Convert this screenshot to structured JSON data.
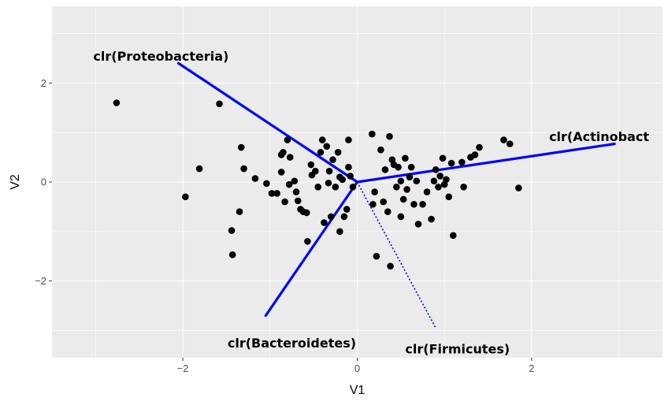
{
  "chart_data": {
    "type": "scatter",
    "title": "",
    "xlabel": "V1",
    "ylabel": "V2",
    "xlim": [
      -3.5,
      3.5
    ],
    "ylim": [
      -3.55,
      3.55
    ],
    "x_ticks": [
      -2,
      0,
      2
    ],
    "y_ticks": [
      -2,
      0,
      2
    ],
    "x_tick_labels": [
      "−2",
      "0",
      "2"
    ],
    "y_tick_labels": [
      "−2",
      "0",
      "2"
    ],
    "grid": true,
    "legend": "none",
    "colors": {
      "panel_background": "#ebebeb",
      "grid_line": "#ffffff",
      "point": "#000000",
      "arrow": "#0000ff"
    },
    "points": [
      {
        "x": -2.76,
        "y": 1.6
      },
      {
        "x": -1.97,
        "y": -0.3
      },
      {
        "x": -1.81,
        "y": 0.27
      },
      {
        "x": -1.58,
        "y": 1.58
      },
      {
        "x": -1.44,
        "y": -0.98
      },
      {
        "x": -1.43,
        "y": -1.47
      },
      {
        "x": -1.35,
        "y": -0.6
      },
      {
        "x": -1.33,
        "y": 0.7
      },
      {
        "x": -1.3,
        "y": 0.27
      },
      {
        "x": -1.17,
        "y": 0.07
      },
      {
        "x": -1.04,
        "y": -0.03
      },
      {
        "x": -0.98,
        "y": -0.23
      },
      {
        "x": -0.92,
        "y": -0.23
      },
      {
        "x": -0.87,
        "y": 0.2
      },
      {
        "x": -0.87,
        "y": 0.55
      },
      {
        "x": -0.85,
        "y": 0.6
      },
      {
        "x": -0.83,
        "y": -0.4
      },
      {
        "x": -0.8,
        "y": 0.85
      },
      {
        "x": -0.78,
        "y": -0.05
      },
      {
        "x": -0.77,
        "y": 0.5
      },
      {
        "x": -0.72,
        "y": 0.02
      },
      {
        "x": -0.7,
        "y": -0.2
      },
      {
        "x": -0.68,
        "y": -0.38
      },
      {
        "x": -0.65,
        "y": -0.55
      },
      {
        "x": -0.62,
        "y": -0.6
      },
      {
        "x": -0.58,
        "y": -0.62
      },
      {
        "x": -0.57,
        "y": -1.2
      },
      {
        "x": -0.53,
        "y": 0.35
      },
      {
        "x": -0.52,
        "y": 0.14
      },
      {
        "x": -0.48,
        "y": 0.22
      },
      {
        "x": -0.45,
        "y": -0.1
      },
      {
        "x": -0.42,
        "y": 0.6
      },
      {
        "x": -0.4,
        "y": 0.85
      },
      {
        "x": -0.38,
        "y": -0.82
      },
      {
        "x": -0.35,
        "y": 0.72
      },
      {
        "x": -0.33,
        "y": -0.02
      },
      {
        "x": -0.32,
        "y": 0.22
      },
      {
        "x": -0.3,
        "y": -0.7
      },
      {
        "x": -0.28,
        "y": 0.45
      },
      {
        "x": -0.25,
        "y": -0.1
      },
      {
        "x": -0.22,
        "y": 0.6
      },
      {
        "x": -0.2,
        "y": 0.1
      },
      {
        "x": -0.2,
        "y": -1.0
      },
      {
        "x": -0.17,
        "y": 0.05
      },
      {
        "x": -0.15,
        "y": -0.7
      },
      {
        "x": -0.12,
        "y": -0.55
      },
      {
        "x": -0.1,
        "y": 0.85
      },
      {
        "x": -0.1,
        "y": 0.3
      },
      {
        "x": -0.08,
        "y": 0.12
      },
      {
        "x": -0.05,
        "y": -0.1
      },
      {
        "x": 0.17,
        "y": 0.97
      },
      {
        "x": 0.18,
        "y": -0.45
      },
      {
        "x": 0.2,
        "y": -0.2
      },
      {
        "x": 0.22,
        "y": -1.5
      },
      {
        "x": 0.27,
        "y": 0.65
      },
      {
        "x": 0.3,
        "y": -0.4
      },
      {
        "x": 0.32,
        "y": 0.25
      },
      {
        "x": 0.35,
        "y": -0.6
      },
      {
        "x": 0.37,
        "y": 0.92
      },
      {
        "x": 0.38,
        "y": -1.7
      },
      {
        "x": 0.4,
        "y": 0.45
      },
      {
        "x": 0.42,
        "y": 0.35
      },
      {
        "x": 0.45,
        "y": -0.1
      },
      {
        "x": 0.47,
        "y": 0.3
      },
      {
        "x": 0.5,
        "y": -0.7
      },
      {
        "x": 0.5,
        "y": 0.02
      },
      {
        "x": 0.53,
        "y": -0.35
      },
      {
        "x": 0.55,
        "y": 0.48
      },
      {
        "x": 0.57,
        "y": -0.15
      },
      {
        "x": 0.6,
        "y": 0.1
      },
      {
        "x": 0.62,
        "y": 0.3
      },
      {
        "x": 0.65,
        "y": -0.45
      },
      {
        "x": 0.68,
        "y": 0.02
      },
      {
        "x": 0.7,
        "y": -0.85
      },
      {
        "x": 0.75,
        "y": -0.45
      },
      {
        "x": 0.8,
        "y": -0.2
      },
      {
        "x": 0.85,
        "y": -0.75
      },
      {
        "x": 0.88,
        "y": 0.02
      },
      {
        "x": 0.9,
        "y": 0.25
      },
      {
        "x": 0.93,
        "y": -0.1
      },
      {
        "x": 0.95,
        "y": 0.12
      },
      {
        "x": 0.98,
        "y": 0.48
      },
      {
        "x": 1.0,
        "y": -0.05
      },
      {
        "x": 1.02,
        "y": 0.05
      },
      {
        "x": 1.05,
        "y": -0.3
      },
      {
        "x": 1.08,
        "y": 0.38
      },
      {
        "x": 1.1,
        "y": -1.08
      },
      {
        "x": 1.2,
        "y": 0.4
      },
      {
        "x": 1.22,
        "y": -0.1
      },
      {
        "x": 1.3,
        "y": 0.5
      },
      {
        "x": 1.35,
        "y": 0.55
      },
      {
        "x": 1.4,
        "y": 0.7
      },
      {
        "x": 1.68,
        "y": 0.85
      },
      {
        "x": 1.75,
        "y": 0.77
      },
      {
        "x": 1.85,
        "y": -0.12
      }
    ],
    "arrows": [
      {
        "label": "clr(Proteobacteria)",
        "x": -2.05,
        "y": 2.4,
        "style": "solid",
        "label_anchor": "middle",
        "label_dx": -0.2,
        "label_dy": 0.15
      },
      {
        "label": "clr(Actinobact",
        "x": 2.95,
        "y": 0.77,
        "style": "solid",
        "label_anchor": "start",
        "label_dx": -0.75,
        "label_dy": 0.15
      },
      {
        "label": "clr(Bacteroidetes)",
        "x": -1.05,
        "y": -2.7,
        "style": "solid",
        "label_anchor": "middle",
        "label_dx": 0.3,
        "label_dy": -0.55
      },
      {
        "label": "clr(Firmicutes)",
        "x": 0.9,
        "y": -2.95,
        "style": "dotted",
        "label_anchor": "middle",
        "label_dx": 0.25,
        "label_dy": -0.42
      }
    ]
  }
}
